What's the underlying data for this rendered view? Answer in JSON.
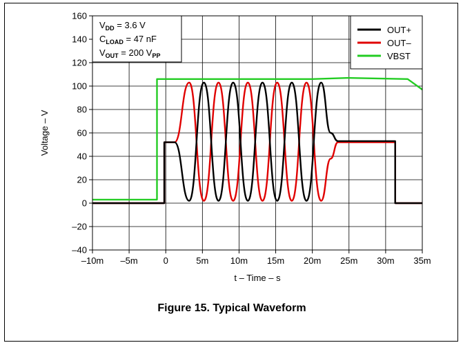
{
  "figure": {
    "caption": "Figure 15. Typical Waveform"
  },
  "annotation": {
    "lines": [
      {
        "sym": "V",
        "sub": "DD",
        "rest": " = 3.6 V"
      },
      {
        "sym": "C",
        "sub": "LOAD",
        "rest": " = 47 nF"
      },
      {
        "sym": "V",
        "sub": "OUT",
        "rest": " = 200 V",
        "sub2": "PP"
      }
    ]
  },
  "chart_data": {
    "type": "line",
    "title": "",
    "xlabel": "t – Time – s",
    "ylabel": "Voltage – V",
    "xlim": [
      -10,
      35
    ],
    "ylim": [
      -40,
      160
    ],
    "x_unit": "ms",
    "xticks": [
      -10,
      -5,
      0,
      5,
      10,
      15,
      20,
      25,
      30,
      35
    ],
    "xtick_labels": [
      "–10m",
      "–5m",
      "0",
      "5m",
      "10m",
      "15m",
      "20m",
      "25m",
      "30m",
      "35m"
    ],
    "yticks": [
      -40,
      -20,
      0,
      20,
      40,
      60,
      80,
      100,
      120,
      140,
      160
    ],
    "ytick_labels": [
      "–40",
      "–20",
      "0",
      "20",
      "40",
      "60",
      "80",
      "100",
      "120",
      "140",
      "160"
    ],
    "grid": true,
    "legend_position": "top-right",
    "series": [
      {
        "name": "OUT+",
        "color": "#000000",
        "points": [
          [
            -10,
            0
          ],
          [
            -0.2,
            0
          ],
          [
            -0.2,
            52
          ],
          [
            1.2,
            52
          ],
          [
            3.2,
            2
          ],
          [
            5.2,
            103
          ],
          [
            7.2,
            2
          ],
          [
            9.2,
            103
          ],
          [
            11.2,
            2
          ],
          [
            13.2,
            103
          ],
          [
            15.2,
            2
          ],
          [
            17.2,
            103
          ],
          [
            19.2,
            2
          ],
          [
            21.2,
            103
          ],
          [
            22.5,
            60
          ],
          [
            23.5,
            53
          ],
          [
            31.3,
            53
          ],
          [
            31.3,
            0
          ],
          [
            35,
            0
          ]
        ]
      },
      {
        "name": "OUT–",
        "color": "#e00000",
        "points": [
          [
            -10,
            0
          ],
          [
            -0.2,
            0
          ],
          [
            -0.2,
            52
          ],
          [
            1.2,
            52
          ],
          [
            3.2,
            103
          ],
          [
            5.2,
            2
          ],
          [
            7.2,
            103
          ],
          [
            9.2,
            2
          ],
          [
            11.2,
            103
          ],
          [
            13.2,
            2
          ],
          [
            15.2,
            103
          ],
          [
            17.2,
            2
          ],
          [
            19.2,
            103
          ],
          [
            21.2,
            2
          ],
          [
            22.5,
            38
          ],
          [
            23.5,
            52
          ],
          [
            31.3,
            52
          ],
          [
            31.3,
            0
          ],
          [
            35,
            0
          ]
        ]
      },
      {
        "name": "VBST",
        "color": "#22cc22",
        "points": [
          [
            -10,
            3
          ],
          [
            -1.2,
            3
          ],
          [
            -1.2,
            106
          ],
          [
            10,
            106
          ],
          [
            20,
            106
          ],
          [
            25,
            107
          ],
          [
            33,
            106
          ],
          [
            35,
            97
          ]
        ]
      }
    ]
  }
}
